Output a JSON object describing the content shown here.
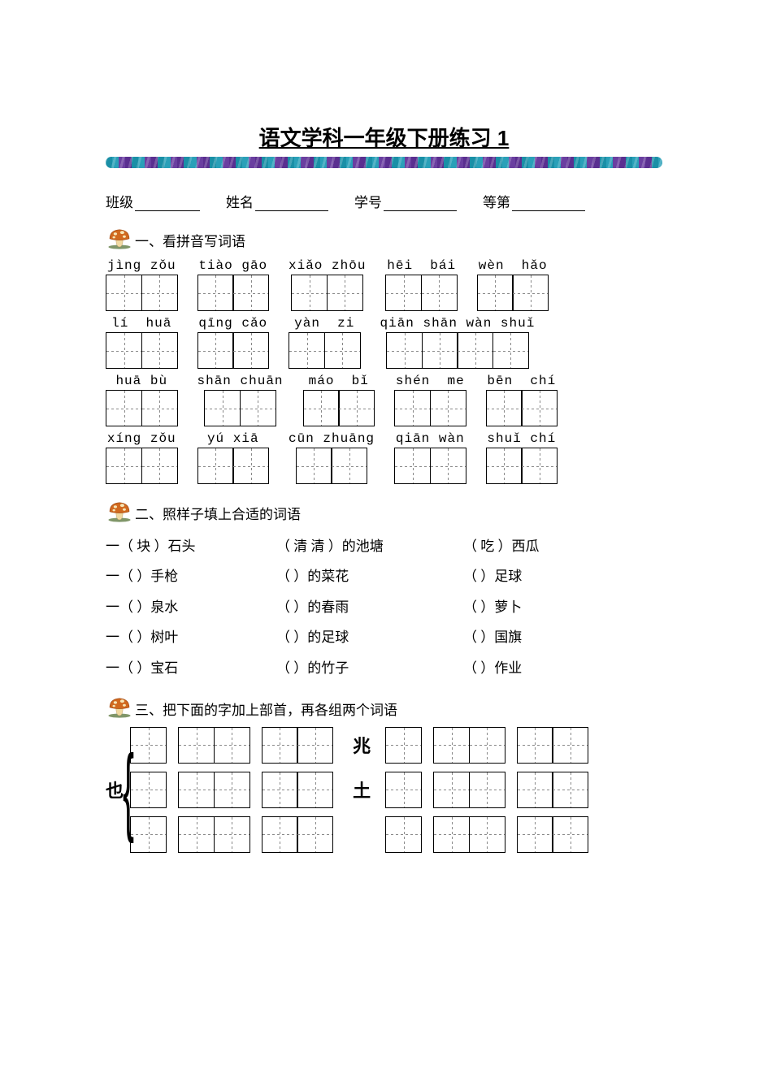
{
  "title": "语文学科一年级下册练习 1",
  "info": {
    "class_label": "班级",
    "name_label": "姓名",
    "id_label": "学号",
    "grade_label": "等第"
  },
  "blank_widths": {
    "class": 80,
    "name": 90,
    "id": 90,
    "grade": 90
  },
  "section1": {
    "heading": "一、看拼音写词语",
    "rows": [
      [
        {
          "pinyin": "jìng zǒu",
          "cells": 2
        },
        {
          "pinyin": "tiào gāo",
          "cells": 2
        },
        {
          "pinyin": "xiǎo zhōu",
          "cells": 2
        },
        {
          "pinyin": "hēi  bái",
          "cells": 2
        },
        {
          "pinyin": "wèn  hǎo",
          "cells": 2
        }
      ],
      [
        {
          "pinyin": "lí  huā",
          "cells": 2
        },
        {
          "pinyin": "qīng cǎo",
          "cells": 2
        },
        {
          "pinyin": "yàn  zi",
          "cells": 2
        },
        {
          "pinyin": "qiān shān wàn shuǐ",
          "cells": 4
        }
      ],
      [
        {
          "pinyin": "huā bù",
          "cells": 2
        },
        {
          "pinyin": "shān chuān",
          "cells": 2
        },
        {
          "pinyin": "máo  bǐ",
          "cells": 2
        },
        {
          "pinyin": "shén  me",
          "cells": 2
        },
        {
          "pinyin": "bēn  chí",
          "cells": 2
        }
      ],
      [
        {
          "pinyin": "xíng zǒu",
          "cells": 2
        },
        {
          "pinyin": "yú xiā",
          "cells": 2
        },
        {
          "pinyin": "cūn zhuāng",
          "cells": 2
        },
        {
          "pinyin": "qiān wàn",
          "cells": 2
        },
        {
          "pinyin": "shuǐ chí",
          "cells": 2
        }
      ]
    ]
  },
  "section2": {
    "heading": "二、照样子填上合适的词语",
    "rows": [
      {
        "a": "一（ 块 ）石头",
        "b": "（ 清 清 ）的池塘",
        "c": "（  吃  ）西瓜"
      },
      {
        "a": "一（      ）手枪",
        "b": "（          ）的菜花",
        "c": "（        ）足球"
      },
      {
        "a": "一（      ）泉水",
        "b": "（          ）的春雨",
        "c": "（        ）萝卜"
      },
      {
        "a": "一（      ）树叶",
        "b": "（          ）的足球",
        "c": "（        ）国旗"
      },
      {
        "a": "一（      ）宝石",
        "b": "（          ）的竹子",
        "c": "（        ）作业"
      }
    ]
  },
  "section3": {
    "heading": "三、把下面的字加上部首，再各组两个词语",
    "left_char": "也",
    "right_chars": [
      "兆",
      "土"
    ],
    "left_pattern": [
      [
        1,
        2,
        2
      ],
      [
        1,
        2,
        2
      ],
      [
        1,
        2,
        2
      ]
    ],
    "right_pattern": [
      [
        1,
        2,
        2
      ],
      [
        1,
        2,
        2
      ],
      [
        1,
        2,
        2
      ]
    ]
  },
  "colors": {
    "text": "#000000",
    "divider_teal": "#1a8fa6",
    "divider_purple": "#6a3fa0",
    "box_border": "#000000",
    "dash": "#888888",
    "mushroom_cap": "#d1691f",
    "mushroom_spot": "#f6e7b8",
    "mushroom_stem": "#f0d9a0",
    "mushroom_shadow": "#4a6a2a"
  },
  "typography": {
    "title_fontsize": 26,
    "body_fontsize": 17,
    "pinyin_fontsize": 16,
    "section3_char_fontsize": 22
  }
}
